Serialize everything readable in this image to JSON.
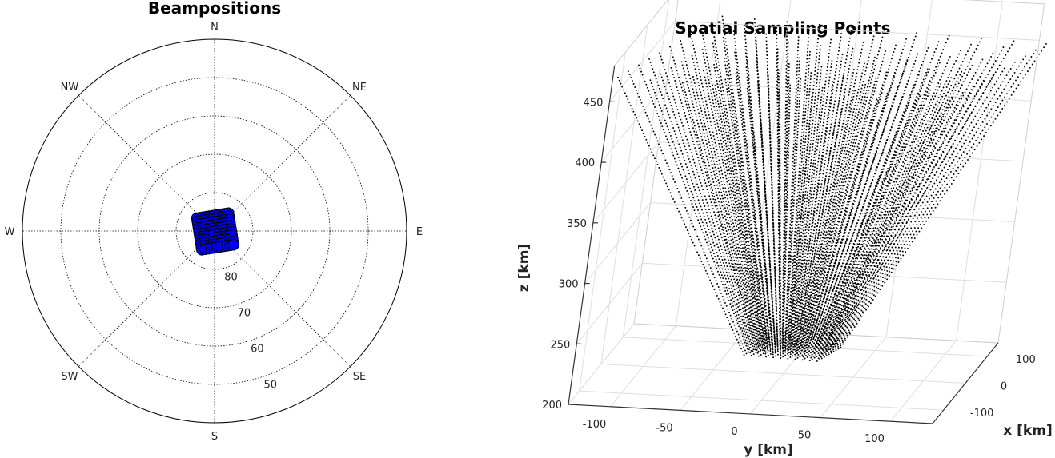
{
  "chart_data": [
    {
      "type": "scatter",
      "subtype": "polar",
      "title": "Beampositions",
      "directions": [
        "N",
        "NE",
        "E",
        "SE",
        "S",
        "SW",
        "W",
        "NW"
      ],
      "radial_tick_labels": [
        "80",
        "70",
        "60",
        "50"
      ],
      "radial_range": [
        40,
        90
      ],
      "radial_center_value": 90,
      "grid": true,
      "marker_color": "#0000ff",
      "marker_edge": "#000000",
      "grid_layout": {
        "rows": 11,
        "cols": 11,
        "rotation_deg": -9
      },
      "beam_offset_x": [
        -4.15,
        -3.32,
        -2.49,
        -1.66,
        -0.83,
        0.0,
        0.83,
        1.66,
        2.49,
        3.32,
        4.15
      ],
      "beam_offset_y": [
        -4.15,
        -3.32,
        -2.49,
        -1.66,
        -0.83,
        0.0,
        0.83,
        1.66,
        2.49,
        3.32,
        4.15
      ],
      "beam_center_offset": [
        0.15,
        0.15
      ]
    },
    {
      "type": "scatter",
      "subtype": "3d",
      "title": "Spatial Sampling Points",
      "xlabel": "x [km]",
      "ylabel": "y [km]",
      "zlabel": "z [km]",
      "x_ticks": [
        "-100",
        "0",
        "100"
      ],
      "y_ticks": [
        "-100",
        "-50",
        "0",
        "50",
        "100"
      ],
      "z_ticks": [
        "200",
        "250",
        "300",
        "350",
        "400",
        "450"
      ],
      "xlim": [
        -150,
        150
      ],
      "ylim": [
        -130,
        130
      ],
      "zlim": [
        200,
        480
      ],
      "grid": true,
      "marker_color": "#000000",
      "beams": 121,
      "samples_per_beam": 90,
      "z_range_samples": [
        220,
        460
      ]
    }
  ]
}
